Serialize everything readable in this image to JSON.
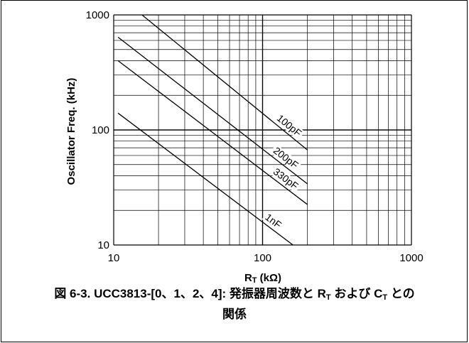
{
  "chart_data": {
    "type": "line",
    "title": "",
    "xlabel": "R T (kΩ)",
    "xlabel_main": "R",
    "xlabel_sub": "T",
    "xlabel_unit": " (kΩ)",
    "ylabel": "Oscillator Freq. (kHz)",
    "xscale": "log",
    "yscale": "log",
    "xlim": [
      10,
      1000
    ],
    "ylim": [
      10,
      1000
    ],
    "grid": true,
    "x_ticks": [
      "10",
      "100",
      "1000"
    ],
    "y_ticks": [
      "10",
      "100",
      "1000"
    ],
    "series": [
      {
        "name": "100pF",
        "x": [
          15.5,
          200
        ],
        "y": [
          1000,
          67
        ]
      },
      {
        "name": "200pF",
        "x": [
          10.7,
          200
        ],
        "y": [
          640,
          34
        ]
      },
      {
        "name": "330pF",
        "x": [
          10.7,
          200
        ],
        "y": [
          400,
          22.5
        ]
      },
      {
        "name": "1nF",
        "x": [
          10.7,
          160
        ],
        "y": [
          140,
          10
        ]
      }
    ]
  },
  "caption": {
    "prefix": "図 6-3. UCC3813-[0、1、2、4]: 発振器周波数と R",
    "sub1": "T",
    "mid": " および C",
    "sub2": "T",
    "suffix": " との",
    "line2": "関係"
  }
}
